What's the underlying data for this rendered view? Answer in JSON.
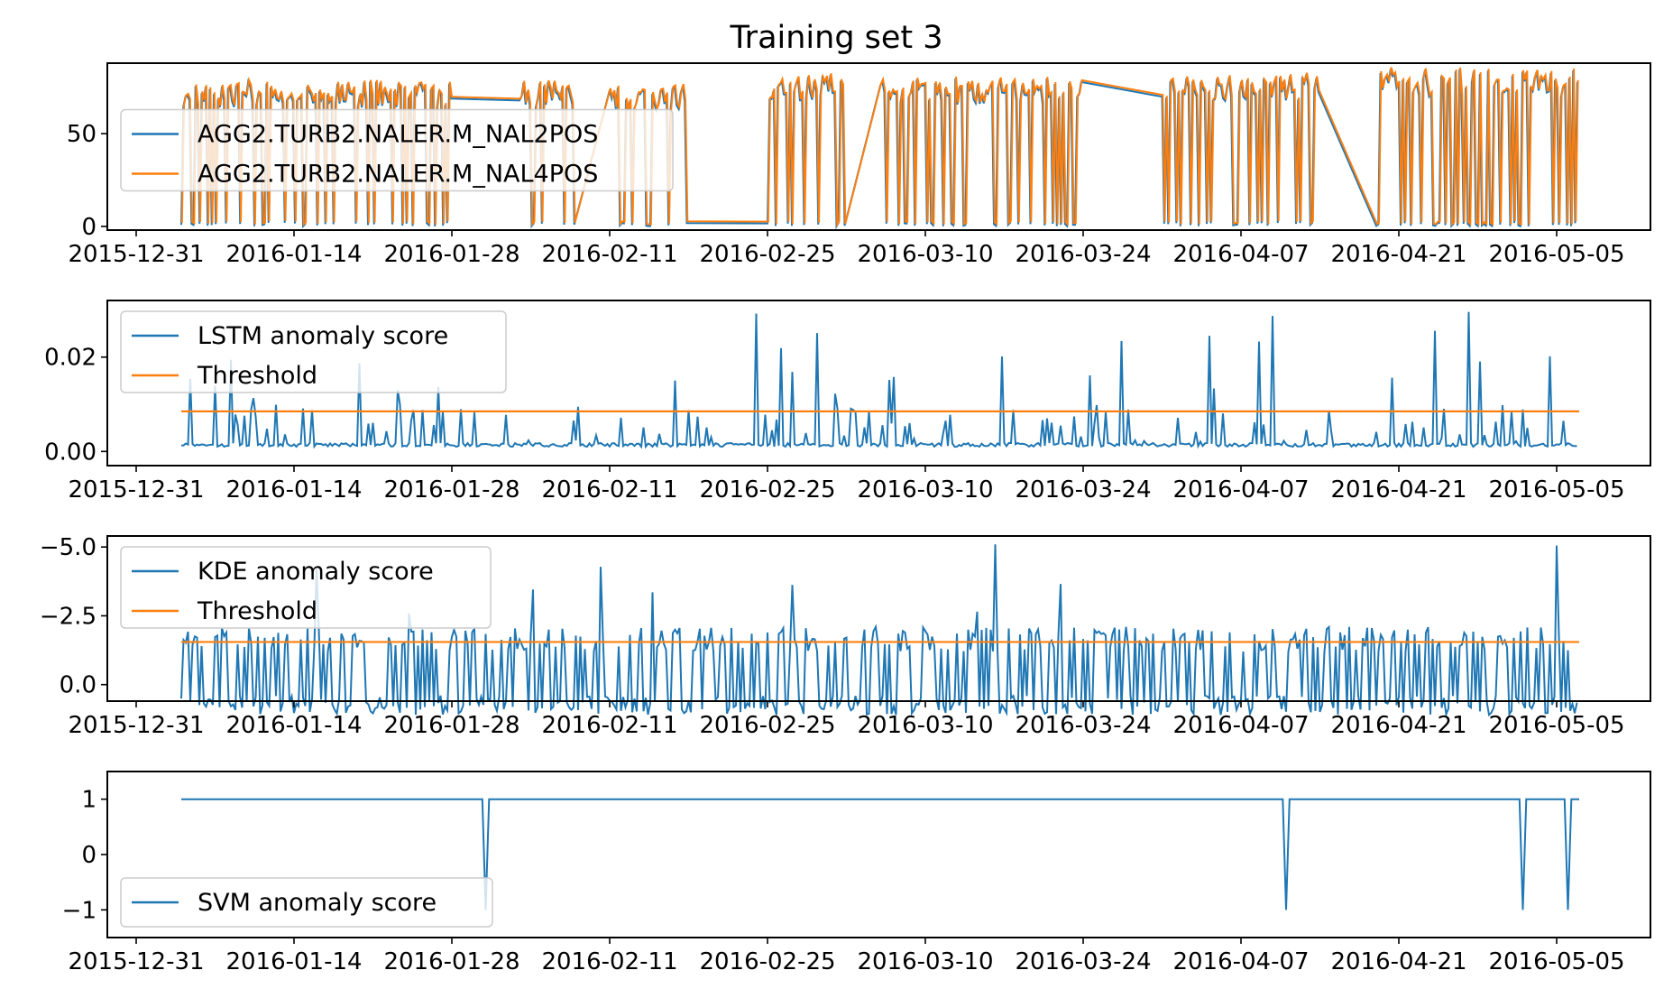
{
  "title": "Training set 3",
  "colors": {
    "blue": "#1f77b4",
    "orange": "#ff7f0e"
  },
  "x_ticks": [
    "2015-12-31",
    "2016-01-14",
    "2016-01-28",
    "2016-02-11",
    "2016-02-25",
    "2016-03-10",
    "2016-03-24",
    "2016-04-07",
    "2016-04-21",
    "2016-05-05"
  ],
  "chart_data": [
    {
      "type": "line",
      "x_range": [
        "2016-01-04",
        "2016-05-07"
      ],
      "ylim": [
        -2,
        88
      ],
      "y_ticks": [
        {
          "v": 0,
          "label": "0"
        },
        {
          "v": 50,
          "label": "50"
        }
      ],
      "legend_position": "middle-left",
      "series": [
        {
          "name": "AGG2.TURB2.NALER.M_NAL2POS",
          "color": "#1f77b4"
        },
        {
          "name": "AGG2.TURB2.NALER.M_NAL4POS",
          "color": "#ff7f0e"
        }
      ],
      "segments": [
        {
          "start": "2016-01-04",
          "end": "2016-01-28",
          "low": 0,
          "high": 78
        },
        {
          "start": "2016-02-03",
          "end": "2016-02-08",
          "low": 0,
          "high": 78
        },
        {
          "start": "2016-02-11",
          "end": "2016-02-18",
          "low": 0,
          "high": 76
        },
        {
          "start": "2016-02-25",
          "end": "2016-03-03",
          "low": 0,
          "high": 82
        },
        {
          "start": "2016-03-06",
          "end": "2016-03-24",
          "low": 0,
          "high": 80
        },
        {
          "start": "2016-03-31",
          "end": "2016-04-14",
          "low": 0,
          "high": 82
        },
        {
          "start": "2016-04-19",
          "end": "2016-05-07",
          "low": 0,
          "high": 85
        }
      ]
    },
    {
      "type": "line",
      "x_range": [
        "2016-01-04",
        "2016-05-07"
      ],
      "ylim": [
        -0.003,
        0.032
      ],
      "y_ticks": [
        {
          "v": 0.0,
          "label": "0.00"
        },
        {
          "v": 0.02,
          "label": "0.02"
        }
      ],
      "legend_position": "upper-left",
      "series": [
        {
          "name": "LSTM anomaly score",
          "color": "#1f77b4"
        },
        {
          "name": "Threshold",
          "color": "#ff7f0e",
          "value": 0.0085
        }
      ],
      "baseline": 0.001,
      "peak": 0.03
    },
    {
      "type": "line",
      "x_range": [
        "2016-01-04",
        "2016-05-07"
      ],
      "ylim": [
        0.6,
        -5.4
      ],
      "y_ticks": [
        {
          "v": -5.0,
          "label": "−5.0"
        },
        {
          "v": -2.5,
          "label": "−2.5"
        },
        {
          "v": 0.0,
          "label": "0.0"
        }
      ],
      "legend_position": "upper-left",
      "series": [
        {
          "name": "KDE anomaly score",
          "color": "#1f77b4"
        },
        {
          "name": "Threshold",
          "color": "#ff7f0e",
          "value": -1.55
        }
      ],
      "peak": -5.2
    },
    {
      "type": "line",
      "x_range": [
        "2016-01-04",
        "2016-05-07"
      ],
      "ylim": [
        -1.5,
        1.5
      ],
      "y_ticks": [
        {
          "v": -1,
          "label": "−1"
        },
        {
          "v": 0,
          "label": "0"
        },
        {
          "v": 1,
          "label": "1"
        }
      ],
      "legend_position": "lower-left",
      "series": [
        {
          "name": "SVM anomaly score",
          "color": "#1f77b4"
        }
      ],
      "level": 1,
      "dips_to": -1,
      "dip_dates": [
        "2016-01-31",
        "2016-04-11",
        "2016-05-02",
        "2016-05-06"
      ]
    }
  ]
}
